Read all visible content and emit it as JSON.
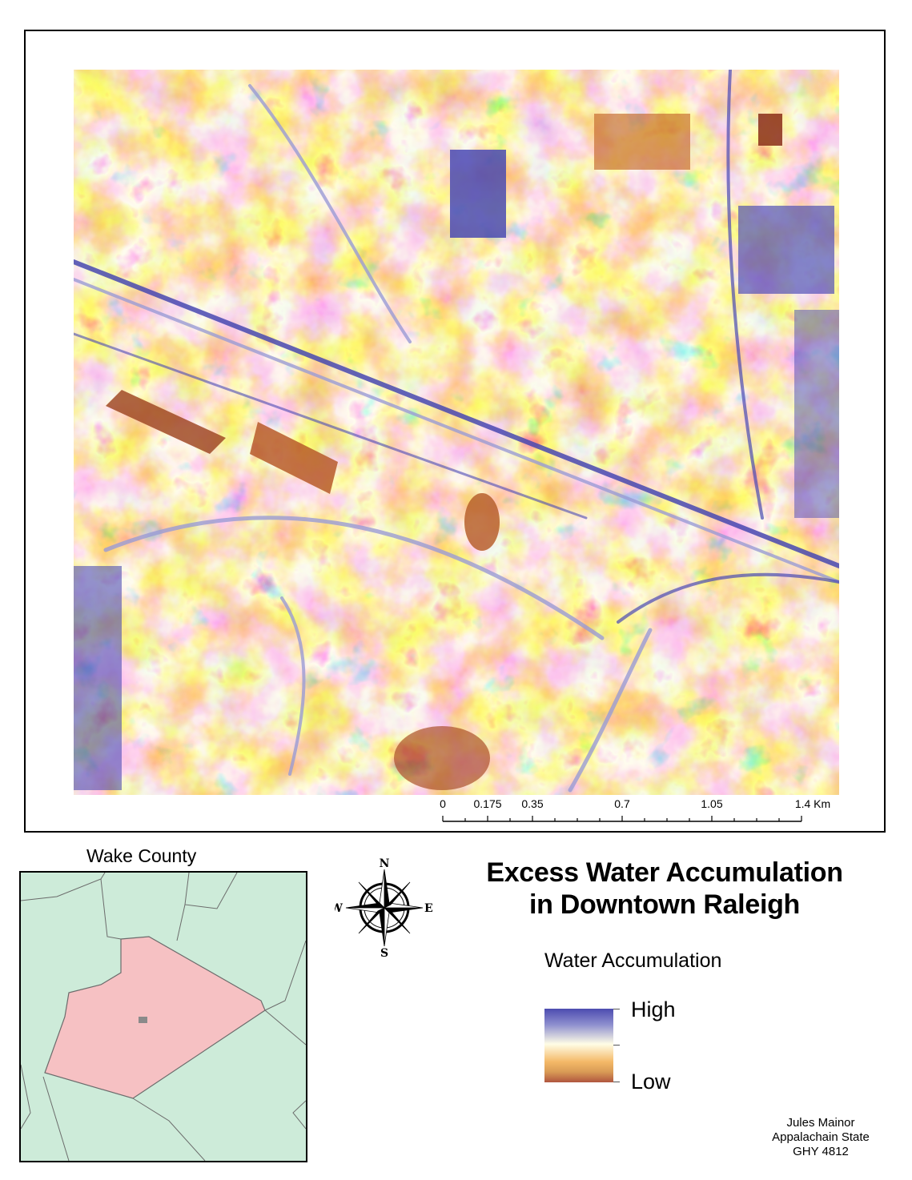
{
  "map": {
    "title_line1": "Excess Water Accumulation",
    "title_line2": "in Downtown Raleigh",
    "raster_colors": {
      "high": "#4a4ab4",
      "mid_high": "#9a9bd4",
      "mid": "#fff8d8",
      "mid_low": "#f2b45e",
      "low": "#e08f35",
      "lowest": "#9c3e22"
    }
  },
  "scale_bar": {
    "ticks": [
      "0",
      "0.175",
      "0.35",
      "0.7",
      "1.05",
      "1.4 Km"
    ],
    "values": [
      0,
      0.175,
      0.35,
      0.7,
      1.05,
      1.4
    ],
    "unit": "Km"
  },
  "inset": {
    "title": "Wake County",
    "colors": {
      "county_fill": "#f6c1c3",
      "surrounding_fill": "#cdebd9",
      "boundary": "#6b6b6b",
      "study_area": "#8a8a8a"
    }
  },
  "north_arrow": {
    "n": "N",
    "s": "S",
    "e": "E",
    "w": "W"
  },
  "legend": {
    "title": "Water Accumulation",
    "high_label": "High",
    "low_label": "Low",
    "ramp_colors": [
      "#4c4cb0",
      "#8f90cf",
      "#fffde6",
      "#f4b968",
      "#d89a55",
      "#b0563f"
    ]
  },
  "author": {
    "name": "Jules Mainor",
    "institution": "Appalachain State",
    "course": "GHY 4812"
  }
}
